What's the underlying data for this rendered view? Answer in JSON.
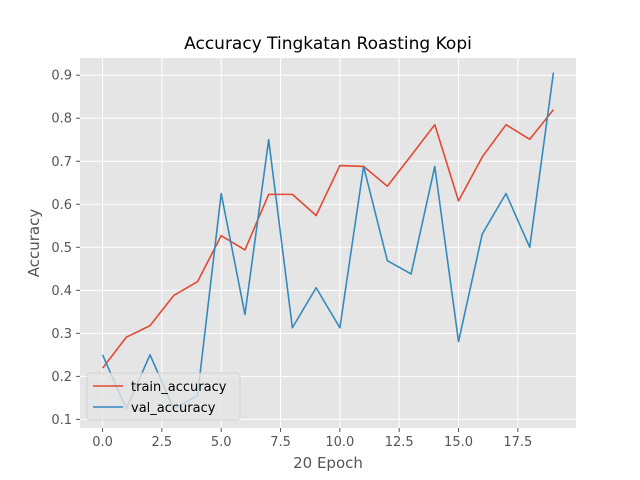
{
  "chart_data": {
    "type": "line",
    "title": "Accuracy Tingkatan Roasting Kopi",
    "xlabel": "20 Epoch",
    "ylabel": "Accuracy",
    "xlim": [
      -0.95,
      19.95
    ],
    "ylim": [
      0.08,
      0.94
    ],
    "x_ticks": [
      0.0,
      2.5,
      5.0,
      7.5,
      10.0,
      12.5,
      15.0,
      17.5
    ],
    "x_tick_labels": [
      "0.0",
      "2.5",
      "5.0",
      "7.5",
      "10.0",
      "12.5",
      "15.0",
      "17.5"
    ],
    "y_ticks": [
      0.1,
      0.2,
      0.3,
      0.4,
      0.5,
      0.6,
      0.7,
      0.8,
      0.9
    ],
    "y_tick_labels": [
      "0.1",
      "0.2",
      "0.3",
      "0.4",
      "0.5",
      "0.6",
      "0.7",
      "0.8",
      "0.9"
    ],
    "grid": true,
    "legend_position": "lower-left",
    "x": [
      0,
      1,
      2,
      3,
      4,
      5,
      6,
      7,
      8,
      9,
      10,
      11,
      12,
      13,
      14,
      15,
      16,
      17,
      18,
      19
    ],
    "series": [
      {
        "name": "train_accuracy",
        "color": "#e24a33",
        "values": [
          0.219,
          0.291,
          0.318,
          0.388,
          0.42,
          0.527,
          0.494,
          0.623,
          0.623,
          0.574,
          0.69,
          0.688,
          0.642,
          0.713,
          0.785,
          0.608,
          0.71,
          0.785,
          0.751,
          0.82
        ]
      },
      {
        "name": "val_accuracy",
        "color": "#348abd",
        "values": [
          0.25,
          0.125,
          0.25,
          0.125,
          0.155,
          0.625,
          0.344,
          0.75,
          0.313,
          0.406,
          0.313,
          0.688,
          0.469,
          0.438,
          0.688,
          0.281,
          0.531,
          0.625,
          0.5,
          0.906
        ]
      }
    ]
  }
}
